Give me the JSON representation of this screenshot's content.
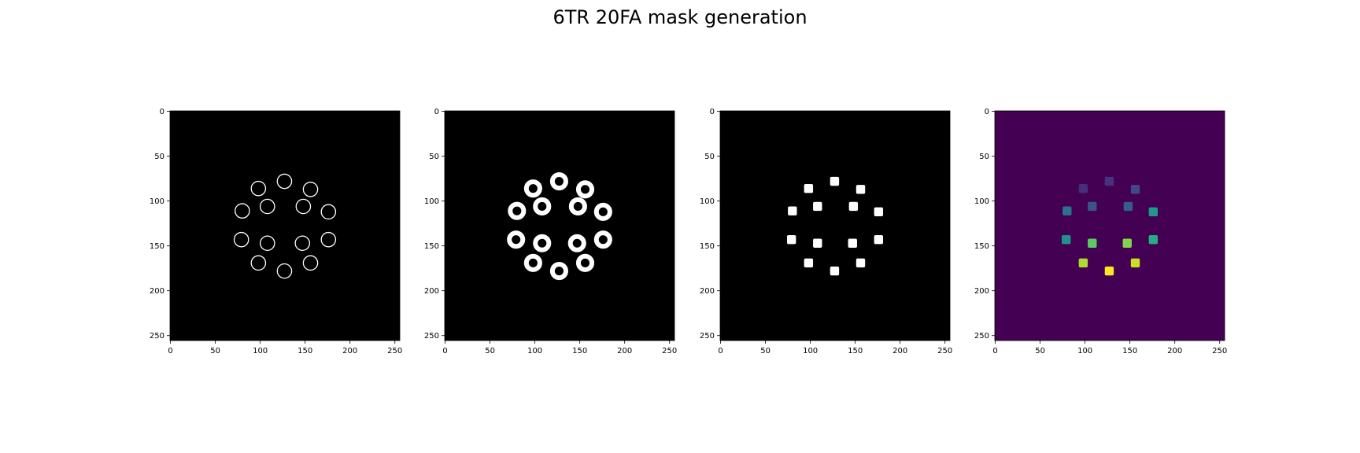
{
  "title": "6TR 20FA mask generation",
  "colors": {
    "background": "#000000",
    "foreground": "#ffffff",
    "viridis_background": "#440154",
    "frame": "#000000"
  },
  "chart_data": [
    {
      "type": "heatmap",
      "panel": "edge-rings",
      "image_size": [
        256,
        256
      ],
      "xlim": [
        0,
        255
      ],
      "ylim": [
        255,
        0
      ],
      "xticks": [
        0,
        50,
        100,
        150,
        200,
        250
      ],
      "yticks": [
        0,
        50,
        100,
        150,
        200,
        250
      ],
      "grid": false,
      "render": "ring",
      "ring_radius": 8,
      "ring_stroke": 1.3,
      "spots": [
        {
          "x": 127,
          "y": 78
        },
        {
          "x": 156,
          "y": 87
        },
        {
          "x": 176,
          "y": 112
        },
        {
          "x": 176,
          "y": 143
        },
        {
          "x": 156,
          "y": 169
        },
        {
          "x": 127,
          "y": 178
        },
        {
          "x": 98,
          "y": 169
        },
        {
          "x": 79,
          "y": 143
        },
        {
          "x": 80,
          "y": 111
        },
        {
          "x": 98,
          "y": 86
        },
        {
          "x": 108,
          "y": 106
        },
        {
          "x": 148,
          "y": 106
        },
        {
          "x": 108,
          "y": 147
        },
        {
          "x": 147,
          "y": 147
        }
      ]
    },
    {
      "type": "heatmap",
      "panel": "dilated-rings",
      "image_size": [
        256,
        256
      ],
      "xlim": [
        0,
        255
      ],
      "ylim": [
        255,
        0
      ],
      "xticks": [
        0,
        50,
        100,
        150,
        200,
        250
      ],
      "yticks": [
        0,
        50,
        100,
        150,
        200,
        250
      ],
      "grid": false,
      "render": "ring",
      "ring_radius": 7.5,
      "ring_stroke": 6,
      "spots": [
        {
          "x": 127,
          "y": 78
        },
        {
          "x": 156,
          "y": 87
        },
        {
          "x": 176,
          "y": 112
        },
        {
          "x": 176,
          "y": 143
        },
        {
          "x": 156,
          "y": 169
        },
        {
          "x": 127,
          "y": 178
        },
        {
          "x": 98,
          "y": 169
        },
        {
          "x": 79,
          "y": 143
        },
        {
          "x": 80,
          "y": 111
        },
        {
          "x": 98,
          "y": 86
        },
        {
          "x": 108,
          "y": 106
        },
        {
          "x": 148,
          "y": 106
        },
        {
          "x": 108,
          "y": 147
        },
        {
          "x": 147,
          "y": 147
        }
      ]
    },
    {
      "type": "heatmap",
      "panel": "binary-squares",
      "image_size": [
        256,
        256
      ],
      "xlim": [
        0,
        255
      ],
      "ylim": [
        255,
        0
      ],
      "xticks": [
        0,
        50,
        100,
        150,
        200,
        250
      ],
      "yticks": [
        0,
        50,
        100,
        150,
        200,
        250
      ],
      "grid": false,
      "render": "square",
      "square_size": 10,
      "spots": [
        {
          "x": 127,
          "y": 78
        },
        {
          "x": 156,
          "y": 87
        },
        {
          "x": 176,
          "y": 112
        },
        {
          "x": 176,
          "y": 143
        },
        {
          "x": 156,
          "y": 169
        },
        {
          "x": 127,
          "y": 178
        },
        {
          "x": 98,
          "y": 169
        },
        {
          "x": 79,
          "y": 143
        },
        {
          "x": 80,
          "y": 111
        },
        {
          "x": 98,
          "y": 86
        },
        {
          "x": 108,
          "y": 106
        },
        {
          "x": 148,
          "y": 106
        },
        {
          "x": 108,
          "y": 147
        },
        {
          "x": 147,
          "y": 147
        }
      ]
    },
    {
      "type": "heatmap",
      "panel": "labeled-squares",
      "colormap": "viridis",
      "image_size": [
        256,
        256
      ],
      "xlim": [
        0,
        255
      ],
      "ylim": [
        255,
        0
      ],
      "xticks": [
        0,
        50,
        100,
        150,
        200,
        250
      ],
      "yticks": [
        0,
        50,
        100,
        150,
        200,
        250
      ],
      "grid": false,
      "render": "square",
      "square_size": 10,
      "spots": [
        {
          "x": 127,
          "y": 78,
          "color": "#46327e"
        },
        {
          "x": 156,
          "y": 87,
          "color": "#3f4889"
        },
        {
          "x": 176,
          "y": 112,
          "color": "#1f9a8a"
        },
        {
          "x": 176,
          "y": 143,
          "color": "#27ad81"
        },
        {
          "x": 156,
          "y": 169,
          "color": "#c8e020"
        },
        {
          "x": 127,
          "y": 178,
          "color": "#fde725"
        },
        {
          "x": 98,
          "y": 169,
          "color": "#addc30"
        },
        {
          "x": 79,
          "y": 143,
          "color": "#21918c"
        },
        {
          "x": 80,
          "y": 111,
          "color": "#2c728e"
        },
        {
          "x": 98,
          "y": 86,
          "color": "#472d7b"
        },
        {
          "x": 108,
          "y": 106,
          "color": "#3b528b"
        },
        {
          "x": 148,
          "y": 106,
          "color": "#365d8d"
        },
        {
          "x": 108,
          "y": 147,
          "color": "#5ec962"
        },
        {
          "x": 147,
          "y": 147,
          "color": "#84d44b"
        }
      ]
    }
  ]
}
